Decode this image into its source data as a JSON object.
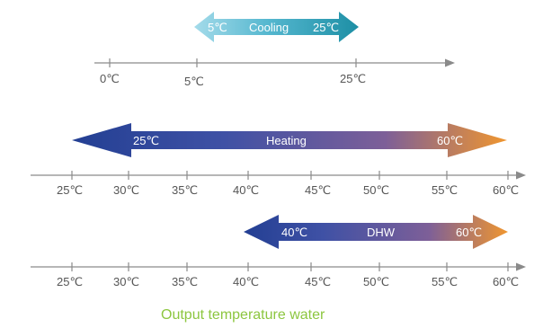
{
  "colors": {
    "axis": "#8a8a8a",
    "label_text": "#555555",
    "arrow_text": "#ffffff",
    "caption": "#8cc63f",
    "blue": "#2a4a9e",
    "orange": "#f0962f",
    "cool_light": "#a4dbea",
    "cool_dark": "#1d8fa5"
  },
  "cooling": {
    "label": "Cooling",
    "start_label": "5℃",
    "end_label": "25℃",
    "axis_ticks": [
      "0℃",
      "5℃",
      "25℃"
    ]
  },
  "heating": {
    "label": "Heating",
    "start_label": "25℃",
    "end_label": "60℃",
    "axis_ticks": [
      "25℃",
      "30℃",
      "35℃",
      "40℃",
      "45℃",
      "50℃",
      "55℃",
      "60℃"
    ]
  },
  "dhw": {
    "label": "DHW",
    "start_label": "40℃",
    "end_label": "60℃",
    "axis_ticks": [
      "25℃",
      "30℃",
      "35℃",
      "40℃",
      "45℃",
      "50℃",
      "55℃",
      "60℃"
    ]
  },
  "caption": "Output temperature water"
}
